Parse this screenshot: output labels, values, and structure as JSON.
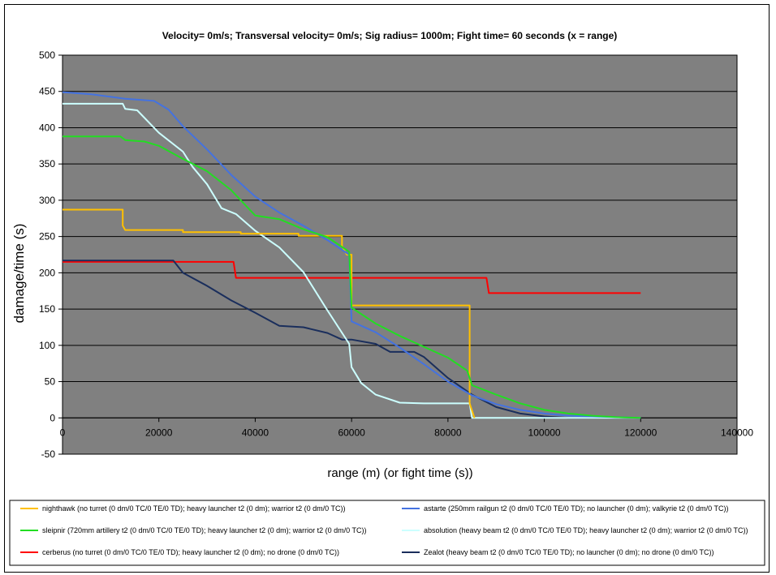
{
  "chart_data": {
    "type": "line",
    "title": "Velocity= 0m/s; Transversal velocity= 0m/s; Sig radius= 1000m; Fight time= 60 seconds (x = range)",
    "xlabel": "range (m) (or fight time (s))",
    "ylabel": "damage/time (s)",
    "xlim": [
      0,
      140000
    ],
    "ylim": [
      -50,
      500
    ],
    "x_ticks": [
      0,
      20000,
      40000,
      60000,
      80000,
      100000,
      120000,
      140000
    ],
    "y_ticks": [
      -50,
      0,
      50,
      100,
      150,
      200,
      250,
      300,
      350,
      400,
      450,
      500
    ],
    "grid": "horizontal",
    "background": "#808080",
    "legend_position": "bottom",
    "series": [
      {
        "name": "nighthawk (no turret (0 dm/0 TC/0 TE/0 TD); heavy launcher t2 (0 dm); warrior t2 (0 dm/0 TC))",
        "color": "#ffc000",
        "x": [
          0,
          12500,
          12500,
          13000,
          25000,
          25000,
          37000,
          37000,
          49000,
          49000,
          58000,
          58000,
          59000,
          60000,
          60000,
          84500,
          84500,
          85500
        ],
        "y": [
          287,
          287,
          265,
          259,
          259,
          256,
          256,
          254,
          254,
          251,
          251,
          237,
          225,
          225,
          155,
          155,
          20,
          0
        ]
      },
      {
        "name": "astarte (250mm railgun t2 (0 dm/0 TC/0 TE/0 TD); no launcher (0 dm); valkyrie t2 (0 dm/0 TC))",
        "color": "#4472e0",
        "x": [
          0,
          6000,
          13000,
          19000,
          22000,
          25000,
          30000,
          35000,
          40000,
          45000,
          50000,
          55000,
          59500,
          60000,
          65000,
          70000,
          75000,
          80000,
          85000,
          90000,
          95000,
          100000,
          105000,
          110000,
          115000,
          120000
        ],
        "y": [
          449,
          446,
          440,
          437,
          425,
          402,
          370,
          335,
          305,
          283,
          265,
          245,
          225,
          133,
          118,
          97,
          74,
          50,
          31,
          19,
          11,
          6,
          3,
          2,
          1,
          0
        ]
      },
      {
        "name": "sleipnir (720mm artillery t2 (0 dm/0 TC/0 TE/0 TD); heavy launcher t2 (0 dm); warrior t2 (0 dm/0 TC))",
        "color": "#22dd22",
        "x": [
          0,
          12000,
          13000,
          17000,
          20000,
          25000,
          30000,
          35000,
          37000,
          40000,
          45000,
          50000,
          55000,
          59500,
          60000,
          65000,
          70000,
          75000,
          80000,
          84000,
          85000,
          90000,
          95000,
          100000,
          105000,
          110000,
          115000,
          120000
        ],
        "y": [
          388,
          388,
          383,
          381,
          375,
          357,
          340,
          314,
          300,
          279,
          274,
          260,
          249,
          229,
          152,
          130,
          113,
          98,
          83,
          65,
          45,
          32,
          20,
          11,
          6,
          3,
          1,
          0
        ]
      },
      {
        "name": "absolution (heavy beam t2 (0 dm/0 TC/0 TE/0 TD); heavy launcher t2 (0 dm); warrior t2 (0 dm/0 TC))",
        "color": "#ccffff",
        "x": [
          0,
          12500,
          13000,
          15500,
          20000,
          25000,
          27000,
          30000,
          33000,
          36000,
          40000,
          45000,
          50000,
          55000,
          59500,
          60000,
          62000,
          65000,
          70000,
          75000,
          82000,
          84500,
          85000,
          120000
        ],
        "y": [
          433,
          433,
          426,
          424,
          393,
          367,
          346,
          322,
          289,
          281,
          258,
          235,
          201,
          148,
          102,
          70,
          48,
          32,
          21,
          20,
          20,
          20,
          0,
          0
        ]
      },
      {
        "name": "cerberus (no turret (0 dm/0 TC/0 TE/0 TD); heavy launcher t2 (0 dm); no drone (0 dm/0 TC))",
        "color": "#ff0000",
        "x": [
          0,
          35500,
          36000,
          88000,
          88500,
          120000
        ],
        "y": [
          215,
          215,
          193,
          193,
          172,
          172
        ]
      },
      {
        "name": "Zealot (heavy beam t2 (0 dm/0 TC/0 TE/0 TD); no launcher (0 dm); no drone (0 dm/0 TC))",
        "color": "#1a2e5c",
        "x": [
          0,
          23000,
          25000,
          30000,
          35000,
          40000,
          45000,
          50000,
          55000,
          58000,
          60000,
          65000,
          68000,
          73000,
          75000,
          80000,
          85000,
          90000,
          95000,
          100000,
          105000,
          110000,
          120000
        ],
        "y": [
          217,
          217,
          200,
          182,
          162,
          145,
          127,
          125,
          117,
          108,
          108,
          102,
          91,
          91,
          84,
          55,
          32,
          15,
          6,
          2,
          0,
          0,
          0
        ]
      }
    ]
  }
}
